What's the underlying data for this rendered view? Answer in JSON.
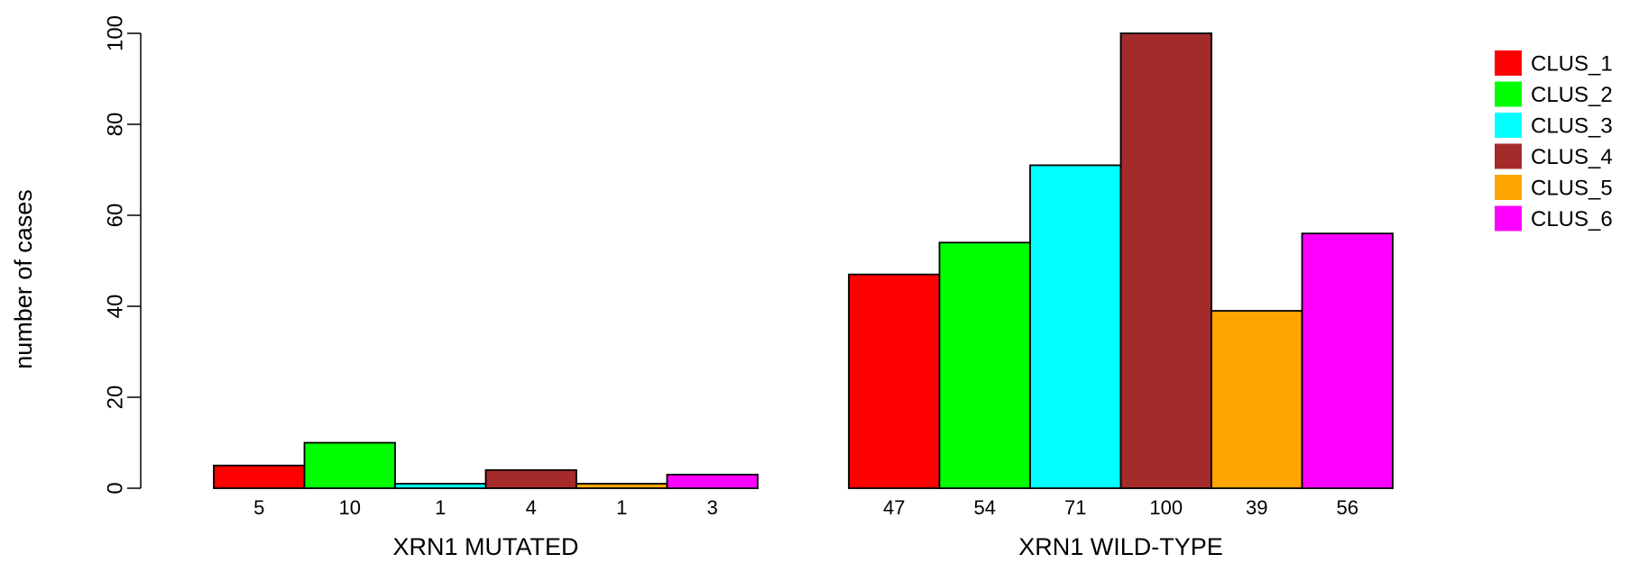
{
  "chart_data": {
    "type": "bar",
    "title": "",
    "ylabel": "number of cases",
    "ylim": [
      0,
      100
    ],
    "yticks": [
      0,
      20,
      40,
      60,
      80,
      100
    ],
    "grid": false,
    "legend_position": "top-right",
    "groups": [
      {
        "label": "XRN1 MUTATED",
        "values": [
          5,
          10,
          1,
          4,
          1,
          3
        ]
      },
      {
        "label": "XRN1 WILD-TYPE",
        "values": [
          47,
          54,
          71,
          100,
          39,
          56
        ]
      }
    ],
    "series": [
      {
        "name": "CLUS_1",
        "color": "#ff0000"
      },
      {
        "name": "CLUS_2",
        "color": "#00ff00"
      },
      {
        "name": "CLUS_3",
        "color": "#00ffff"
      },
      {
        "name": "CLUS_4",
        "color": "#a52a2a"
      },
      {
        "name": "CLUS_5",
        "color": "#ffa500"
      },
      {
        "name": "CLUS_6",
        "color": "#ff00ff"
      }
    ]
  }
}
